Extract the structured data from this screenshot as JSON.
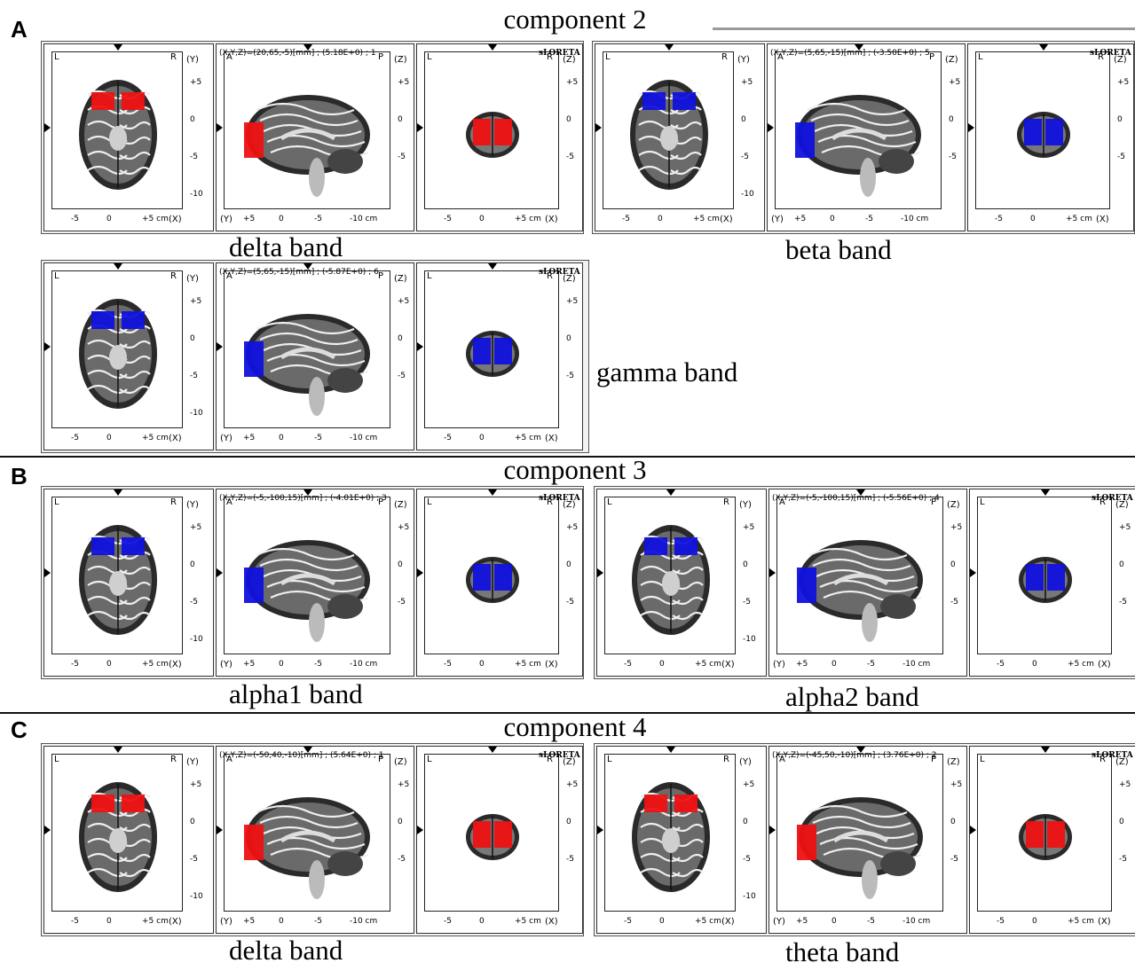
{
  "panel_labels": {
    "a": "A",
    "b": "B",
    "c": "C"
  },
  "component_titles": {
    "c2": "component 2",
    "c3": "component 3",
    "c4": "component 4"
  },
  "band_labels": {
    "delta_c2": "delta band",
    "beta_c2": "beta band",
    "gamma_c2": "gamma band",
    "alpha1_c3": "alpha1 band",
    "alpha2_c3": "alpha2 band",
    "delta_c4": "delta band",
    "theta_c4": "theta band"
  },
  "software_brand": "sLORETA",
  "orientation_labels": {
    "left": "L",
    "right": "R",
    "anterior": "A",
    "posterior": "P"
  },
  "axis_names": {
    "x": "(X)",
    "y": "(Y)",
    "z": "(Z)"
  },
  "ticks": {
    "y_axis": [
      "+5",
      "0",
      "-5",
      "-10"
    ],
    "z_axis": [
      "+5",
      "0",
      "-5"
    ],
    "x_axis": [
      "-5",
      "0",
      "+5 cm"
    ],
    "sagittal_x": [
      "+5",
      "0",
      "-5",
      "-10 cm"
    ]
  },
  "plots": [
    {
      "id": "delta_c2",
      "info": "(X,Y,Z)=(20,65,-5)[mm] ; (5.18E+0) ; 1",
      "activation_color": "#ee1111"
    },
    {
      "id": "beta_c2",
      "info": "(X,Y,Z)=(5,65,-15)[mm] ; (-3.50E+0) ; 5",
      "activation_color": "#1111dd"
    },
    {
      "id": "gamma_c2",
      "info": "(X,Y,Z)=(5,65,-15)[mm] ; (-5.87E+0) ; 6",
      "activation_color": "#1111dd"
    },
    {
      "id": "alpha1_c3",
      "info": "(X,Y,Z)=(-5,-100,15)[mm] ; (-4.01E+0) ; 3",
      "activation_color": "#1111dd"
    },
    {
      "id": "alpha2_c3",
      "info": "(X,Y,Z)=(-5,-100,15)[mm] ; (-5.56E+0) ; 4",
      "activation_color": "#1111dd"
    },
    {
      "id": "delta_c4",
      "info": "(X,Y,Z)=(-50,40,-10)[mm] ; (5.64E+0) ; 1",
      "activation_color": "#ee1111"
    },
    {
      "id": "theta_c4",
      "info": "(X,Y,Z)=(-45,50,-10)[mm] ; (3.76E+0) ; 2",
      "activation_color": "#ee1111"
    }
  ],
  "colors": {
    "positive": "#ee1111",
    "negative": "#1111dd",
    "panel_bg": "#f2f2f2"
  }
}
